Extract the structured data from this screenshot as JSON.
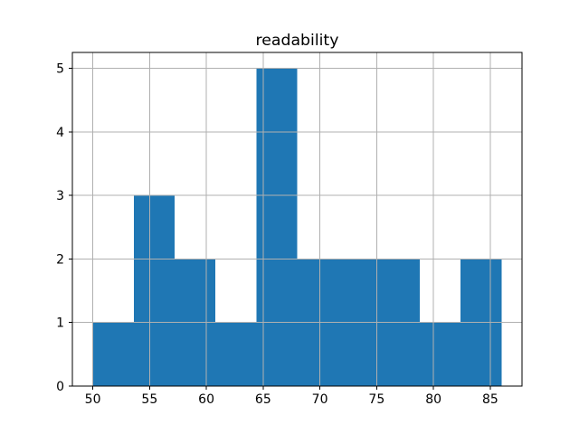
{
  "chart_data": {
    "type": "bar",
    "subtype": "histogram",
    "title": "readability",
    "xlabel": "",
    "ylabel": "",
    "bin_edges": [
      50,
      53.6,
      57.2,
      60.8,
      64.4,
      68,
      71.6,
      75.2,
      78.8,
      82.4,
      86
    ],
    "counts": [
      1,
      3,
      2,
      1,
      5,
      2,
      2,
      2,
      1,
      2
    ],
    "xticks": [
      50,
      55,
      60,
      65,
      70,
      75,
      80,
      85
    ],
    "yticks": [
      0,
      1,
      2,
      3,
      4,
      5
    ],
    "xlim": [
      48.2,
      87.8
    ],
    "ylim": [
      0,
      5.25
    ],
    "grid": true,
    "legend": "none",
    "bar_color": "#1f77b4",
    "grid_color": "#b0b0b0",
    "spine_color": "#000000",
    "tick_color": "#000000",
    "background_color": "#ffffff"
  }
}
